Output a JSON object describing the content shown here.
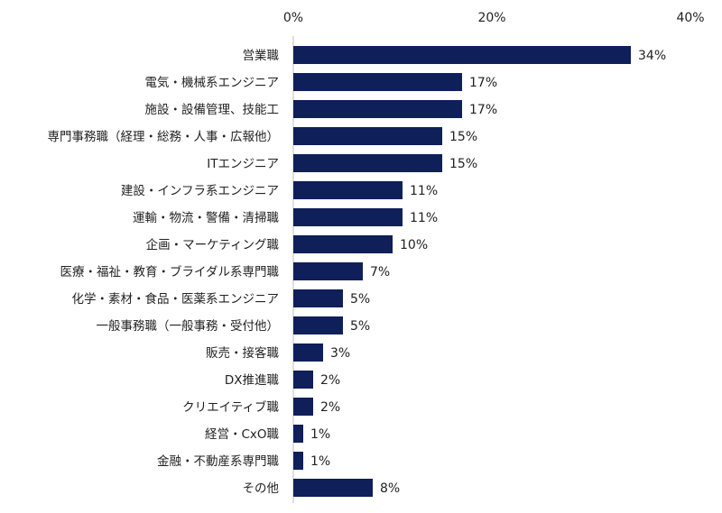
{
  "chart_data": {
    "type": "bar",
    "orientation": "horizontal",
    "title": "",
    "xlabel": "",
    "ylabel": "",
    "xlim": [
      0,
      40
    ],
    "x_ticks": [
      "0%",
      "20%",
      "40%"
    ],
    "x_axis_position": "top",
    "grid": false,
    "bar_color": "#0f1f5a",
    "value_suffix": "%",
    "categories": [
      "営業職",
      "電気・機械系エンジニア",
      "施設・設備管理、技能工",
      "専門事務職（経理・総務・人事・広報他）",
      "ITエンジニア",
      "建設・インフラ系エンジニア",
      "運輸・物流・警備・清掃職",
      "企画・マーケティング職",
      "医療・福祉・教育・ブライダル系専門職",
      "化学・素材・食品・医薬系エンジニア",
      "一般事務職（一般事務・受付他）",
      "販売・接客職",
      "DX推進職",
      "クリエイティブ職",
      "経営・CxO職",
      "金融・不動産系専門職",
      "その他"
    ],
    "values": [
      34,
      17,
      17,
      15,
      15,
      11,
      11,
      10,
      7,
      5,
      5,
      3,
      2,
      2,
      1,
      1,
      8
    ],
    "value_labels": [
      "34%",
      "17%",
      "17%",
      "15%",
      "15%",
      "11%",
      "11%",
      "10%",
      "7%",
      "5%",
      "5%",
      "3%",
      "2%",
      "2%",
      "1%",
      "1%",
      "8%"
    ]
  }
}
